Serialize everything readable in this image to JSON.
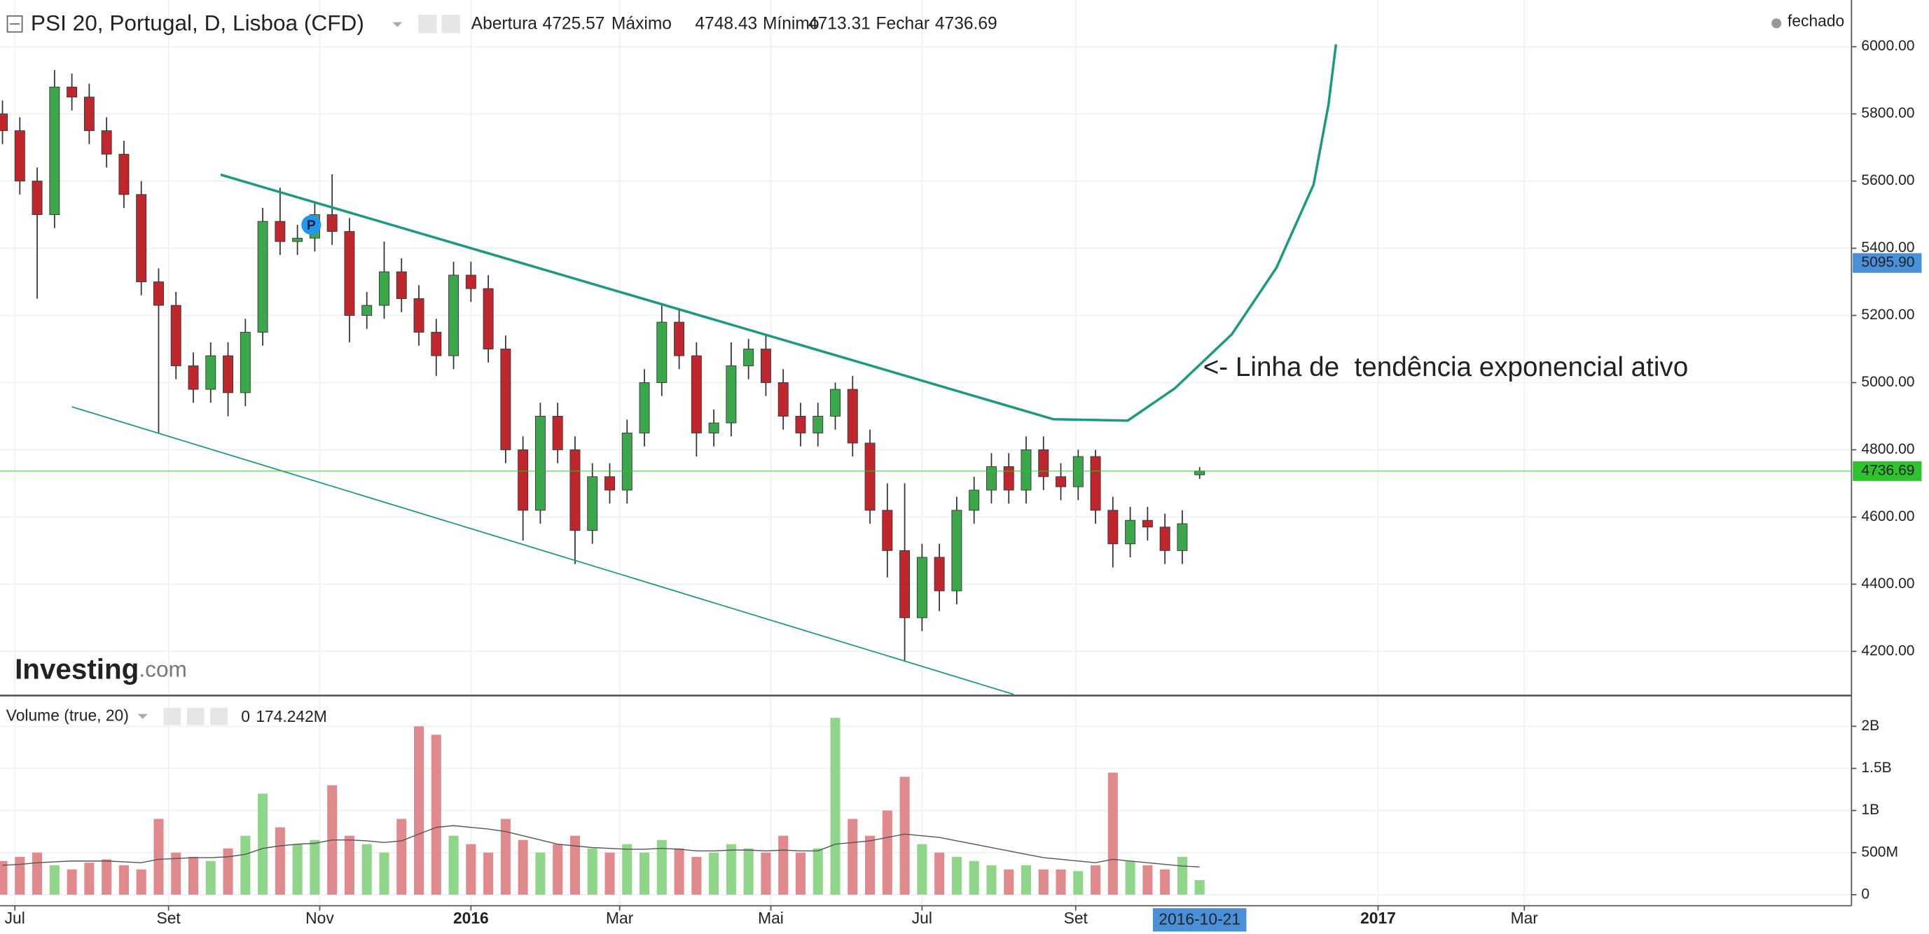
{
  "chart_data": {
    "type": "candlestick",
    "title": "PSI 20, Portugal, D, Lisboa (CFD)",
    "ohlc_labels": [
      "Abertura",
      "Máximo",
      "Mínimo",
      "Fechar"
    ],
    "status": "fechado",
    "logo": "Investing",
    "logo_suffix": ".com",
    "marker_label": "P",
    "annotation": "<- Linha de  tendência exponencial ativo",
    "price_marker": {
      "value": 5095.9,
      "label": "5095.90"
    },
    "up_color": "#3aa84a",
    "down_color": "#c0272d",
    "last_color": "#2ec22e",
    "marker_color": "#4a90d9",
    "candles": {
      "x": [
        "2015-06-26",
        "2015-07-03",
        "2015-07-10",
        "2015-07-17",
        "2015-07-24",
        "2015-07-31",
        "2015-08-07",
        "2015-08-14",
        "2015-08-21",
        "2015-08-28",
        "2015-09-04",
        "2015-09-11",
        "2015-09-18",
        "2015-09-25",
        "2015-10-02",
        "2015-10-09",
        "2015-10-16",
        "2015-10-23",
        "2015-10-30",
        "2015-11-06",
        "2015-11-13",
        "2015-11-20",
        "2015-11-27",
        "2015-12-04",
        "2015-12-11",
        "2015-12-18",
        "2015-12-25",
        "2016-01-01",
        "2016-01-08",
        "2016-01-15",
        "2016-01-22",
        "2016-01-29",
        "2016-02-05",
        "2016-02-12",
        "2016-02-19",
        "2016-02-26",
        "2016-03-04",
        "2016-03-11",
        "2016-03-18",
        "2016-03-25",
        "2016-04-01",
        "2016-04-08",
        "2016-04-15",
        "2016-04-22",
        "2016-04-29",
        "2016-05-06",
        "2016-05-13",
        "2016-05-20",
        "2016-05-27",
        "2016-06-03",
        "2016-06-10",
        "2016-06-17",
        "2016-06-24",
        "2016-07-01",
        "2016-07-08",
        "2016-07-15",
        "2016-07-22",
        "2016-07-29",
        "2016-08-05",
        "2016-08-12",
        "2016-08-19",
        "2016-08-26",
        "2016-09-02",
        "2016-09-09",
        "2016-09-16",
        "2016-09-23",
        "2016-09-30",
        "2016-10-07",
        "2016-10-14",
        "2016-10-21"
      ],
      "open": [
        5800,
        5750,
        5600,
        5500,
        5880,
        5850,
        5750,
        5680,
        5560,
        5300,
        5230,
        5050,
        4980,
        5080,
        4970,
        5150,
        5480,
        5420,
        5430,
        5500,
        5450,
        5200,
        5230,
        5330,
        5250,
        5150,
        5080,
        5320,
        5280,
        5100,
        4800,
        4620,
        4900,
        4800,
        4560,
        4720,
        4680,
        4850,
        5000,
        5180,
        5080,
        4850,
        4880,
        5050,
        5100,
        5000,
        4900,
        4850,
        4900,
        4980,
        4820,
        4620,
        4500,
        4300,
        4480,
        4380,
        4620,
        4680,
        4750,
        4680,
        4800,
        4720,
        4690,
        4780,
        4620,
        4520,
        4590,
        4570,
        4500,
        4725.57
      ],
      "high": [
        5840,
        5790,
        5640,
        5930,
        5920,
        5890,
        5790,
        5720,
        5600,
        5340,
        5270,
        5090,
        5120,
        5120,
        5190,
        5520,
        5580,
        5470,
        5540,
        5620,
        5490,
        5270,
        5420,
        5370,
        5290,
        5190,
        5360,
        5360,
        5320,
        5140,
        4840,
        4940,
        4940,
        4840,
        4760,
        4760,
        4890,
        5040,
        5230,
        5220,
        5120,
        4920,
        5120,
        5130,
        5140,
        5040,
        4940,
        4940,
        5000,
        5020,
        4860,
        4700,
        4700,
        4520,
        4520,
        4660,
        4720,
        4790,
        4790,
        4840,
        4840,
        4760,
        4800,
        4800,
        4660,
        4630,
        4630,
        4610,
        4620,
        4748.43
      ],
      "low": [
        5710,
        5560,
        5250,
        5460,
        5810,
        5710,
        5640,
        5520,
        5260,
        4850,
        5010,
        4940,
        4940,
        4900,
        4930,
        5110,
        5380,
        5380,
        5390,
        5410,
        5120,
        5160,
        5190,
        5210,
        5110,
        5020,
        5040,
        5240,
        5060,
        4760,
        4530,
        4580,
        4760,
        4460,
        4520,
        4640,
        4640,
        4810,
        4960,
        5040,
        4780,
        4810,
        4840,
        5010,
        4960,
        4860,
        4810,
        4810,
        4860,
        4780,
        4580,
        4420,
        4170,
        4260,
        4320,
        4340,
        4580,
        4640,
        4640,
        4640,
        4680,
        4650,
        4650,
        4580,
        4450,
        4480,
        4530,
        4460,
        4460,
        4713.31
      ],
      "close": [
        5750,
        5600,
        5500,
        5880,
        5850,
        5750,
        5680,
        5560,
        5300,
        5230,
        5050,
        4980,
        5080,
        4970,
        5150,
        5480,
        5420,
        5430,
        5500,
        5450,
        5200,
        5230,
        5330,
        5250,
        5150,
        5080,
        5320,
        5280,
        5100,
        4800,
        4620,
        4900,
        4800,
        4560,
        4720,
        4680,
        4850,
        5000,
        5180,
        5080,
        4850,
        4880,
        5050,
        5100,
        5000,
        4900,
        4850,
        4900,
        4980,
        4820,
        4620,
        4500,
        4300,
        4480,
        4380,
        4620,
        4680,
        4750,
        4680,
        4800,
        4720,
        4690,
        4780,
        4620,
        4520,
        4590,
        4570,
        4500,
        4580,
        4736.69
      ]
    },
    "trend_lines": [
      {
        "color": "#1a9a80",
        "width": 2,
        "x": [
          "2015-09-22",
          "2016-08-23",
          "2016-09-22",
          "2016-10-11",
          "2016-11-03",
          "2016-11-21",
          "2016-12-06",
          "2016-12-12",
          "2016-12-15"
        ],
        "y": [
          5619,
          4891,
          4887,
          4983,
          5144,
          5342,
          5590,
          5828,
          6007
        ]
      },
      {
        "color": "#1a9a80",
        "width": 1,
        "x": [
          "2015-07-24",
          "2016-08-07"
        ],
        "y": [
          4928,
          4072
        ]
      }
    ],
    "xlim": [
      "2015-06-25",
      "2017-07-11"
    ],
    "xticks": [
      {
        "value": "2015-07-01",
        "label": "Jul"
      },
      {
        "value": "2015-09-01",
        "label": "Set"
      },
      {
        "value": "2015-11-01",
        "label": "Nov"
      },
      {
        "value": "2016-01-01",
        "label": "2016"
      },
      {
        "value": "2016-03-01",
        "label": "Mar"
      },
      {
        "value": "2016-05-01",
        "label": "Mai"
      },
      {
        "value": "2016-07-01",
        "label": "Jul"
      },
      {
        "value": "2016-09-01",
        "label": "Set"
      },
      {
        "value": "2017-01-01",
        "label": "2017"
      },
      {
        "value": "2017-03-01",
        "label": "Mar"
      }
    ],
    "ylim": [
      4072,
      6139
    ],
    "yticks": [
      {
        "value": 4200,
        "label": "4200.00"
      },
      {
        "value": 4400,
        "label": "4400.00"
      },
      {
        "value": 4600,
        "label": "4600.00"
      },
      {
        "value": 4800,
        "label": "4800.00"
      },
      {
        "value": 5000,
        "label": "5000.00"
      },
      {
        "value": 5200,
        "label": "5200.00"
      },
      {
        "value": 5400,
        "label": "5400.00"
      },
      {
        "value": 5600,
        "label": "5600.00"
      },
      {
        "value": 5800,
        "label": "5800.00"
      },
      {
        "value": 6000,
        "label": "6000.00"
      }
    ],
    "grid": true,
    "volume": {
      "name": "Volume (true, 20)",
      "indicator_value": 0,
      "current": {
        "value": 174242000,
        "label": "174.242M"
      },
      "up_color": "#8fd68a",
      "down_color": "#e08a8e",
      "ma_color": "#555555",
      "values": [
        400000000,
        450000000,
        500000000,
        350000000,
        300000000,
        380000000,
        420000000,
        350000000,
        300000000,
        900000000,
        500000000,
        450000000,
        400000000,
        550000000,
        700000000,
        1200000000,
        800000000,
        600000000,
        650000000,
        1300000000,
        700000000,
        600000000,
        500000000,
        900000000,
        2000000000,
        1900000000,
        700000000,
        600000000,
        500000000,
        900000000,
        650000000,
        500000000,
        600000000,
        700000000,
        550000000,
        500000000,
        600000000,
        500000000,
        650000000,
        550000000,
        450000000,
        500000000,
        600000000,
        550000000,
        500000000,
        700000000,
        500000000,
        550000000,
        2100000000,
        900000000,
        700000000,
        1000000000,
        1400000000,
        600000000,
        500000000,
        450000000,
        400000000,
        350000000,
        300000000,
        350000000,
        300000000,
        300000000,
        280000000,
        350000000,
        1450000000,
        400000000,
        350000000,
        300000000,
        450000000,
        174242000
      ],
      "ma": [
        350000000,
        360000000,
        380000000,
        390000000,
        400000000,
        400000000,
        400000000,
        390000000,
        380000000,
        420000000,
        430000000,
        440000000,
        440000000,
        450000000,
        480000000,
        550000000,
        580000000,
        600000000,
        610000000,
        650000000,
        650000000,
        640000000,
        620000000,
        640000000,
        720000000,
        800000000,
        820000000,
        800000000,
        780000000,
        750000000,
        700000000,
        650000000,
        600000000,
        580000000,
        560000000,
        550000000,
        540000000,
        540000000,
        550000000,
        540000000,
        520000000,
        520000000,
        530000000,
        530000000,
        520000000,
        530000000,
        520000000,
        520000000,
        600000000,
        620000000,
        640000000,
        680000000,
        720000000,
        700000000,
        680000000,
        640000000,
        600000000,
        560000000,
        520000000,
        480000000,
        440000000,
        420000000,
        400000000,
        380000000,
        420000000,
        400000000,
        380000000,
        360000000,
        340000000,
        330000000
      ],
      "ylim": [
        -131000000,
        2350000000
      ],
      "yticks": [
        0,
        {
          "value": 500000000,
          "label": "500M"
        },
        {
          "value": 1000000000,
          "label": "1B"
        },
        {
          "value": 1500000000,
          "label": "1.5B"
        },
        {
          "value": 2000000000,
          "label": "2B"
        }
      ]
    }
  }
}
